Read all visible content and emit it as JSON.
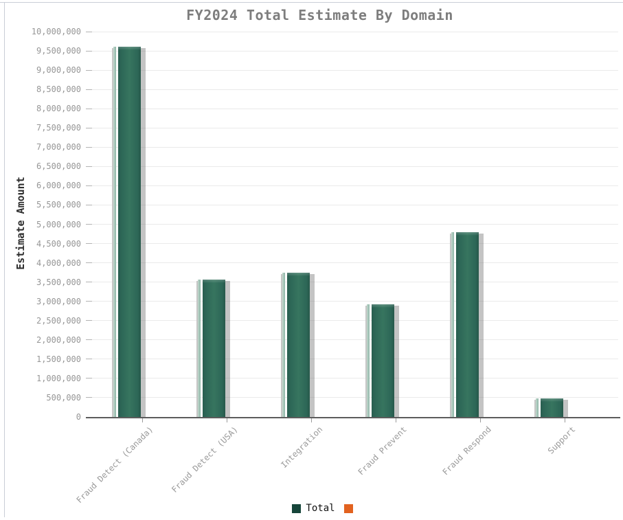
{
  "chart_data": {
    "type": "bar",
    "title": "FY2024 Total Estimate By Domain",
    "xlabel": "",
    "ylabel": "Estimate Amount",
    "categories": [
      "Fraud Detect (Canada)",
      "Fraud Detect (USA)",
      "Integration",
      "Fraud Prevent",
      "Fraud Respond",
      "Support"
    ],
    "series": [
      {
        "name": "Total",
        "values": [
          9600000,
          3570000,
          3750000,
          2920000,
          4800000,
          480000
        ]
      }
    ],
    "ylim": [
      0,
      10000000
    ],
    "ytick_step": 500000,
    "grid": true,
    "x_tick_rotation": 45,
    "legend_position": "bottom",
    "legend": [
      {
        "label": "Total",
        "color": "#16453a"
      },
      {
        "label": "",
        "color": "#e2621f"
      }
    ],
    "colors": {
      "bar_main": "#336e5c",
      "bar_edge": "#295e50",
      "bar_highlight": "#a9cabd",
      "bar_shadow": "#9e9e9e",
      "gridline": "#eaeaea",
      "axis_line": "#5c5c5c",
      "tick_label": "#969696",
      "title": "#7d7d7d",
      "frame_border": "#c9cdd6"
    }
  }
}
